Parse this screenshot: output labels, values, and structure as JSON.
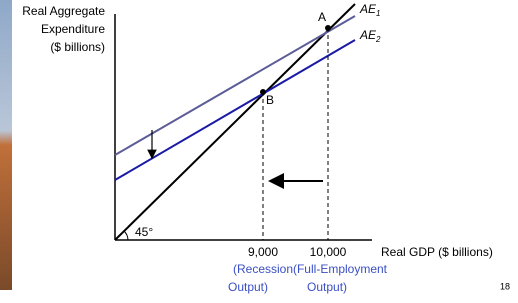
{
  "y_axis_label": [
    "Real Aggregate",
    "Expenditure",
    "($ billions)"
  ],
  "x_axis_label": "Real GDP ($ billions)",
  "lines": [
    {
      "label": "AE",
      "subscript": "1"
    },
    {
      "label": "AE",
      "subscript": "2"
    }
  ],
  "points": [
    {
      "label": "A"
    },
    {
      "label": "B"
    }
  ],
  "x_marks": [
    {
      "label": "9,000",
      "note": [
        "(Recession",
        "Output)"
      ]
    },
    {
      "label": "10,000",
      "note": [
        "(Full-Employment",
        "Output)"
      ]
    }
  ],
  "angle_label": "45°",
  "page_number": "18"
}
